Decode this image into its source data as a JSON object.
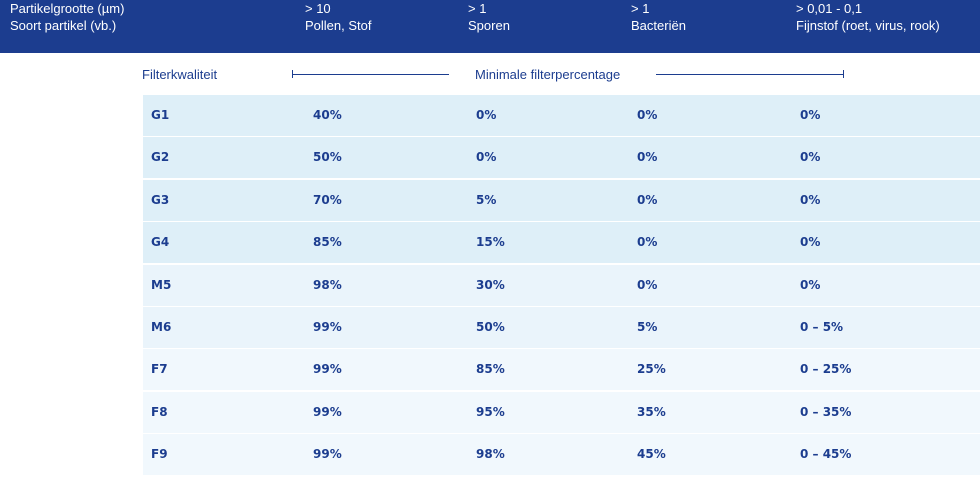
{
  "header": {
    "col0": [
      "Partikelgrootte (µm)",
      "Soort partikel (vb.)"
    ],
    "col1": [
      "> 10",
      "Pollen, Stof"
    ],
    "col2": [
      "> 1",
      "Sporen"
    ],
    "col3": [
      "> 1",
      "Bacteriën"
    ],
    "col4": [
      "> 0,01 - 0,1",
      "Fijnstof (roet, virus, rook)"
    ]
  },
  "subheader": {
    "filter_label": "Filterkwaliteit",
    "percentage_label": "Minimale filterpercentage"
  },
  "colors": {
    "header_bg": "#1c3d8f",
    "text": "#1c3d8f",
    "row_g": "#deeff8",
    "row_m": "#eaf4fb",
    "row_f": "#f1f8fd"
  },
  "rows": [
    [
      "G1",
      "40%",
      "0%",
      "0%",
      "0%"
    ],
    [
      "G2",
      "50%",
      "0%",
      "0%",
      "0%"
    ],
    [
      "G3",
      "70%",
      "5%",
      "0%",
      "0%"
    ],
    [
      "G4",
      "85%",
      "15%",
      "0%",
      "0%"
    ],
    [
      "M5",
      "98%",
      "30%",
      "0%",
      "0%"
    ],
    [
      "M6",
      "99%",
      "50%",
      "5%",
      "0 – 5%"
    ],
    [
      "F7",
      "99%",
      "85%",
      "25%",
      "0 – 25%"
    ],
    [
      "F8",
      "99%",
      "95%",
      "35%",
      "0 – 35%"
    ],
    [
      "F9",
      "99%",
      "98%",
      "45%",
      "0 – 45%"
    ]
  ]
}
